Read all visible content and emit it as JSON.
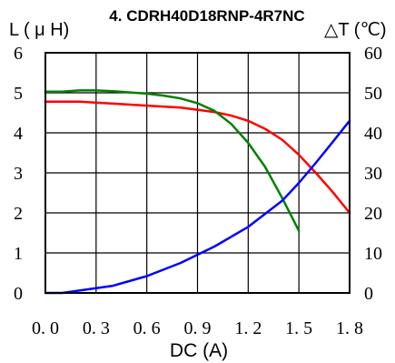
{
  "chart_data": {
    "type": "line",
    "title": "4. CDRH40D18RNP-4R7NC",
    "xlabel": "DC (A)",
    "ylabel_left": "L ( μ H)",
    "ylabel_right": "△T (℃)",
    "xlim": [
      0,
      1.8
    ],
    "ylim_left": [
      0,
      6
    ],
    "ylim_right": [
      0,
      60
    ],
    "x_ticks": [
      "0. 0",
      "0. 3",
      "0. 6",
      "0. 9",
      "1. 2",
      "1. 5",
      "1. 8"
    ],
    "y_ticks_left": [
      "0",
      "1",
      "2",
      "3",
      "4",
      "5",
      "6"
    ],
    "y_ticks_right": [
      "0",
      "10",
      "20",
      "30",
      "40",
      "50",
      "60"
    ],
    "grid": true,
    "series": [
      {
        "axis": "left",
        "color": "#ff0000",
        "x": [
          0.0,
          0.2,
          0.4,
          0.6,
          0.8,
          1.0,
          1.1,
          1.2,
          1.3,
          1.4,
          1.5,
          1.6,
          1.7,
          1.8
        ],
        "y": [
          4.78,
          4.78,
          4.73,
          4.68,
          4.63,
          4.52,
          4.43,
          4.3,
          4.1,
          3.83,
          3.45,
          3.0,
          2.52,
          2.0
        ]
      },
      {
        "axis": "left",
        "color": "#008000",
        "x": [
          0.0,
          0.1,
          0.2,
          0.3,
          0.4,
          0.5,
          0.6,
          0.7,
          0.8,
          0.9,
          1.0,
          1.1,
          1.2,
          1.3,
          1.4,
          1.5
        ],
        "y": [
          5.03,
          5.03,
          5.06,
          5.06,
          5.04,
          5.01,
          4.98,
          4.93,
          4.86,
          4.74,
          4.55,
          4.22,
          3.75,
          3.15,
          2.38,
          1.55
        ]
      },
      {
        "axis": "right",
        "color": "#0000ff",
        "x": [
          0.0,
          0.1,
          0.2,
          0.4,
          0.6,
          0.8,
          1.0,
          1.2,
          1.4,
          1.5,
          1.6,
          1.7,
          1.8
        ],
        "y": [
          0.0,
          0.0,
          0.6,
          1.8,
          4.2,
          7.5,
          11.6,
          16.5,
          23.0,
          27.5,
          32.5,
          37.7,
          43.0
        ]
      }
    ]
  }
}
